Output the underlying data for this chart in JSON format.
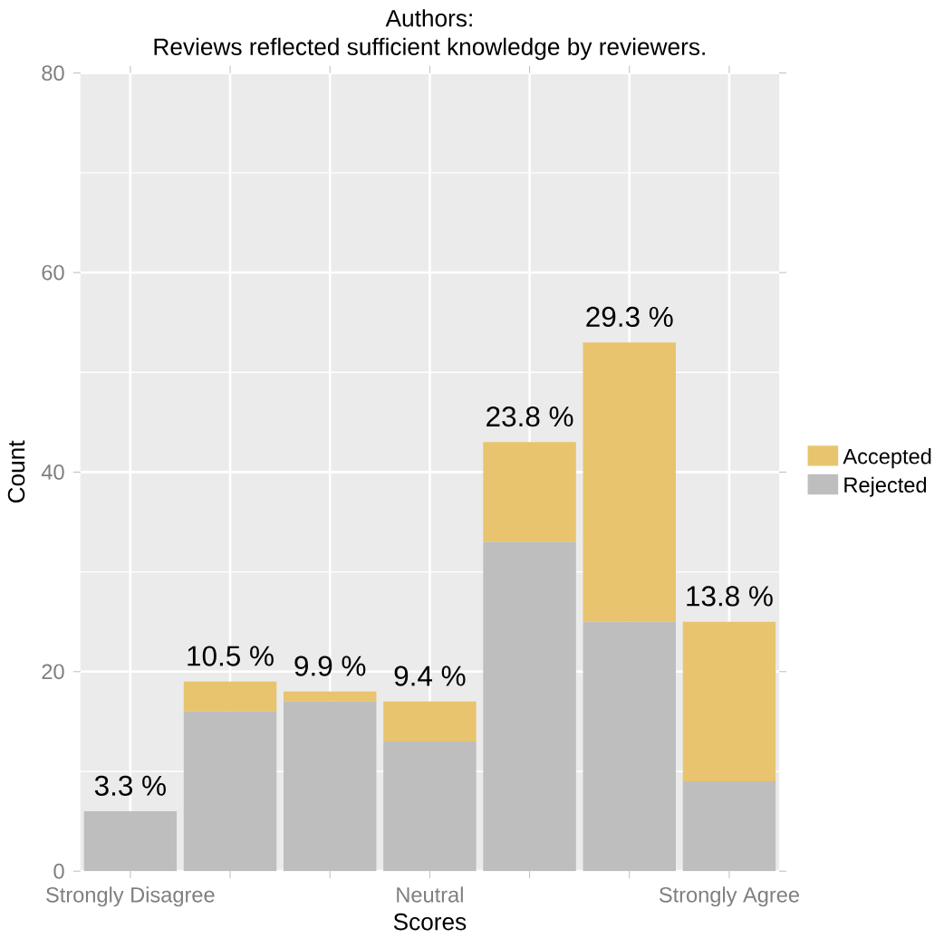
{
  "chart_data": {
    "type": "bar",
    "title": "Authors:",
    "subtitle": "Reviews reflected sufficient knowledge by reviewers.",
    "xlabel": "Scores",
    "ylabel": "Count",
    "categories": [
      "Strongly Disagree",
      null,
      null,
      "Neutral",
      null,
      null,
      "Strongly Agree"
    ],
    "series": [
      {
        "name": "Rejected",
        "color": "#bebebe",
        "values": [
          6,
          16,
          17,
          13,
          33,
          25,
          9
        ]
      },
      {
        "name": "Accepted",
        "color": "#e8c46e",
        "values": [
          0,
          3,
          1,
          4,
          10,
          28,
          16
        ]
      }
    ],
    "stacked": true,
    "ylim": [
      0,
      80
    ],
    "yticks": [
      0,
      20,
      40,
      60,
      80
    ],
    "grid": true,
    "legend": "right",
    "annotations": [
      {
        "text": "3.3 %",
        "x": "Strongly Disagree",
        "y": 6
      },
      {
        "text": "10.5 %",
        "y": 19
      },
      {
        "text": "9.9 %",
        "y": 18
      },
      {
        "text": "9.4 %",
        "x": "Neutral",
        "y": 17
      },
      {
        "text": "23.8 %",
        "y": 43
      },
      {
        "text": "29.3 %",
        "y": 53
      },
      {
        "text": "13.8 %",
        "x": "Strongly Agree",
        "y": 25
      }
    ]
  }
}
